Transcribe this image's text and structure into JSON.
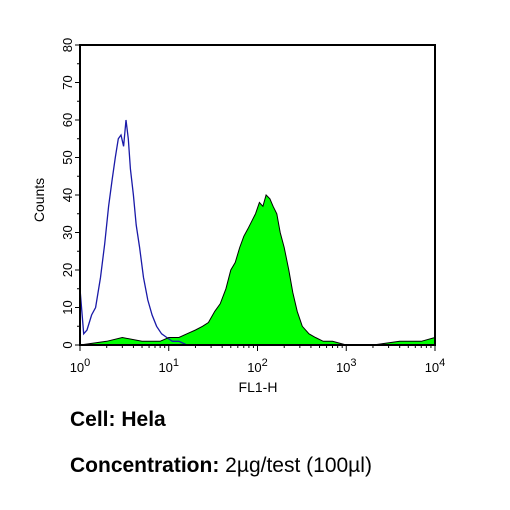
{
  "chart_data": {
    "type": "area",
    "title": "",
    "xlabel": "FL1-H",
    "ylabel": "Counts",
    "x_scale": "log",
    "xlim": [
      1,
      10000
    ],
    "ylim": [
      0,
      80
    ],
    "x_ticks": [
      {
        "value": 1,
        "base": "10",
        "exp": "0"
      },
      {
        "value": 10,
        "base": "10",
        "exp": "1"
      },
      {
        "value": 100,
        "base": "10",
        "exp": "2"
      },
      {
        "value": 1000,
        "base": "10",
        "exp": "3"
      },
      {
        "value": 10000,
        "base": "10",
        "exp": "4"
      }
    ],
    "y_ticks": [
      "0",
      "10",
      "20",
      "30",
      "40",
      "50",
      "60",
      "70",
      "80"
    ],
    "grid": false,
    "series": [
      {
        "color": "#1a1aa8",
        "style": "outline",
        "x": [
          1.0,
          1.1,
          1.2,
          1.35,
          1.5,
          1.7,
          1.9,
          2.1,
          2.3,
          2.5,
          2.7,
          2.9,
          3.1,
          3.3,
          3.5,
          3.7,
          4.0,
          4.3,
          4.7,
          5.2,
          5.8,
          6.5,
          7.3,
          8.3,
          9.5,
          11,
          13,
          16,
          20
        ],
        "y": [
          15,
          3,
          4,
          8,
          10,
          18,
          27,
          37,
          44,
          50,
          55,
          56,
          53,
          60,
          55,
          47,
          40,
          32,
          26,
          18,
          12,
          8,
          5,
          3,
          2,
          1,
          1,
          0,
          0
        ]
      },
      {
        "color": "#00ff00",
        "style": "filled",
        "x": [
          1,
          2,
          3,
          5,
          8,
          10,
          13,
          16,
          20,
          24,
          28,
          33,
          38,
          44,
          50,
          56,
          63,
          70,
          78,
          86,
          95,
          105,
          115,
          125,
          138,
          150,
          165,
          180,
          200,
          225,
          250,
          280,
          320,
          380,
          450,
          550,
          700,
          1000,
          2000,
          4000,
          7000,
          10000
        ],
        "y": [
          0,
          1,
          2,
          1,
          1,
          2,
          2,
          3,
          4,
          5,
          6,
          9,
          11,
          15,
          20,
          22,
          26,
          29,
          31,
          33,
          35,
          38,
          37,
          40,
          39,
          37,
          35,
          30,
          26,
          20,
          14,
          9,
          5,
          3,
          2,
          1,
          1,
          0,
          0,
          1,
          1,
          2
        ]
      }
    ]
  },
  "captions": {
    "cell_label": "Cell:",
    "cell_value": "Hela",
    "conc_label": "Concentration:",
    "conc_value": "2µg/test (100µl)"
  }
}
